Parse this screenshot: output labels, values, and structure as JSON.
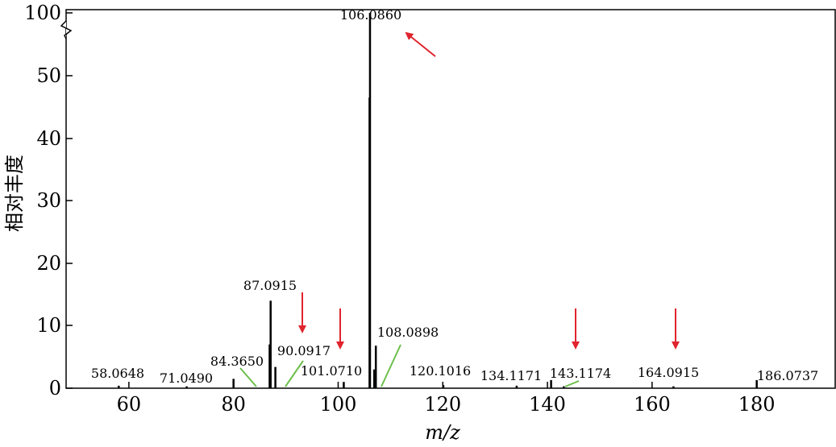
{
  "chart_data": {
    "type": "bar",
    "xlabel": "m/z",
    "ylabel": "相对丰度",
    "xlim": [
      48,
      195
    ],
    "y_ticks": [
      "0",
      "10",
      "20",
      "30",
      "40",
      "50",
      "100"
    ],
    "x_ticks": [
      60,
      80,
      100,
      120,
      140,
      160,
      180
    ],
    "axis_break": "50-100",
    "series": [
      {
        "values": [
          {
            "x": 58.0648,
            "y": 0.4
          },
          {
            "x": 71.049,
            "y": 0.3
          },
          {
            "x": 80.0,
            "y": 1.5
          },
          {
            "x": 86.9,
            "y": 7.0
          },
          {
            "x": 87.0915,
            "y": 14.0
          },
          {
            "x": 88.0,
            "y": 3.4
          },
          {
            "x": 101.071,
            "y": 1.0
          },
          {
            "x": 106.0,
            "y": 46.5
          },
          {
            "x": 106.086,
            "y": 100
          },
          {
            "x": 106.9,
            "y": 3.0
          },
          {
            "x": 107.2,
            "y": 6.8
          },
          {
            "x": 120.1016,
            "y": 0.5
          },
          {
            "x": 134.1171,
            "y": 0.4
          },
          {
            "x": 140.7,
            "y": 1.3
          },
          {
            "x": 143.1174,
            "y": 0.3
          },
          {
            "x": 164.0915,
            "y": 0.3
          },
          {
            "x": 180.0,
            "y": 1.3
          }
        ]
      }
    ],
    "peak_labels": [
      {
        "text": "58.0648",
        "x": 58.0648
      },
      {
        "text": "71.0490",
        "x": 71.049
      },
      {
        "text": "84.3650",
        "x": 84.365
      },
      {
        "text": "87.0915",
        "x": 87.0915
      },
      {
        "text": "90.0917",
        "x": 90.0917
      },
      {
        "text": "101.0710",
        "x": 101.071
      },
      {
        "text": "106.0860",
        "x": 106.086
      },
      {
        "text": "108.0898",
        "x": 108.0898
      },
      {
        "text": "120.1016",
        "x": 120.1016
      },
      {
        "text": "134.1171",
        "x": 134.1171
      },
      {
        "text": "143.1174",
        "x": 143.1174
      },
      {
        "text": "164.0915",
        "x": 164.0915
      },
      {
        "text": "186.0737",
        "x": 186.0737
      }
    ],
    "arrows": [
      {
        "x": 92.7
      },
      {
        "x": 100.7
      },
      {
        "x": 146.0
      },
      {
        "x": 164.8
      },
      {
        "x": 112.0
      }
    ],
    "colors": {
      "bars": "#000000",
      "arrows": "#e0242e",
      "leaders": "#6cbf4a"
    }
  }
}
